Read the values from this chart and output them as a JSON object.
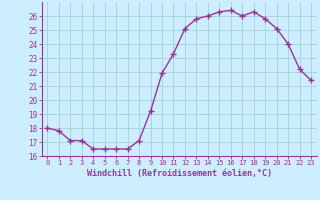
{
  "x": [
    0,
    1,
    2,
    3,
    4,
    5,
    6,
    7,
    8,
    9,
    10,
    11,
    12,
    13,
    14,
    15,
    16,
    17,
    18,
    19,
    20,
    21,
    22,
    23
  ],
  "y": [
    18.0,
    17.8,
    17.1,
    17.1,
    16.5,
    16.5,
    16.5,
    16.5,
    17.1,
    19.2,
    21.9,
    23.3,
    25.1,
    25.8,
    26.0,
    26.3,
    26.4,
    26.0,
    26.3,
    25.8,
    25.1,
    24.0,
    22.2,
    21.4
  ],
  "xlabel": "Windchill (Refroidissement éolien,°C)",
  "ylim": [
    16,
    27
  ],
  "xlim": [
    -0.5,
    23.5
  ],
  "yticks": [
    16,
    17,
    18,
    19,
    20,
    21,
    22,
    23,
    24,
    25,
    26
  ],
  "xticks": [
    0,
    1,
    2,
    3,
    4,
    5,
    6,
    7,
    8,
    9,
    10,
    11,
    12,
    13,
    14,
    15,
    16,
    17,
    18,
    19,
    20,
    21,
    22,
    23
  ],
  "line_color": "#993399",
  "marker_color": "#993399",
  "bg_color": "#cceeff",
  "grid_color": "#99cccc",
  "spine_color": "#993399",
  "tick_color": "#993399",
  "label_color": "#993399",
  "marker": "+",
  "linewidth": 1.0,
  "markersize": 4,
  "tick_labelsize": 5.5,
  "xlabel_fontsize": 6.0
}
